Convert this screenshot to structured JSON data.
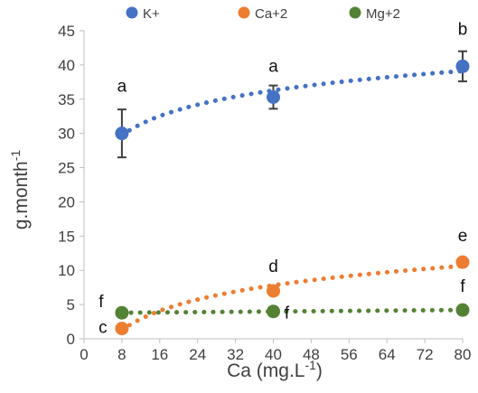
{
  "chart_data": {
    "type": "scatter",
    "title": "",
    "xlabel": "Ca (mg.L",
    "xlabel_sup": "-1",
    "xlabel_tail": ")",
    "ylabel": "g.month",
    "ylabel_sup": "-1",
    "xlim": [
      0,
      80
    ],
    "ylim": [
      0,
      45
    ],
    "x_ticks": [
      0,
      8,
      16,
      24,
      32,
      40,
      48,
      56,
      64,
      72,
      80
    ],
    "y_ticks": [
      0,
      5,
      10,
      15,
      20,
      25,
      30,
      35,
      40,
      45
    ],
    "grid": false,
    "legend_position": "top",
    "series": [
      {
        "name": "K+",
        "color": "#4472C4",
        "x": [
          8,
          40,
          80
        ],
        "y": [
          30,
          35.3,
          39.8
        ],
        "error": [
          3.5,
          1.7,
          2.2
        ],
        "labels": [
          "a",
          "a",
          "b"
        ],
        "trend_type": "log"
      },
      {
        "name": "Ca+2",
        "color": "#ED7D31",
        "x": [
          8,
          40,
          80
        ],
        "y": [
          1.5,
          7,
          11.2
        ],
        "error": [
          0,
          0,
          0
        ],
        "labels": [
          "c",
          "d",
          "e"
        ],
        "trend_type": "log"
      },
      {
        "name": "Mg+2",
        "color": "#548235",
        "x": [
          8,
          40,
          80
        ],
        "y": [
          3.8,
          4,
          4.2
        ],
        "error": [
          0,
          0,
          0
        ],
        "labels": [
          "f",
          "f",
          "f"
        ],
        "trend_type": "linear"
      }
    ]
  }
}
